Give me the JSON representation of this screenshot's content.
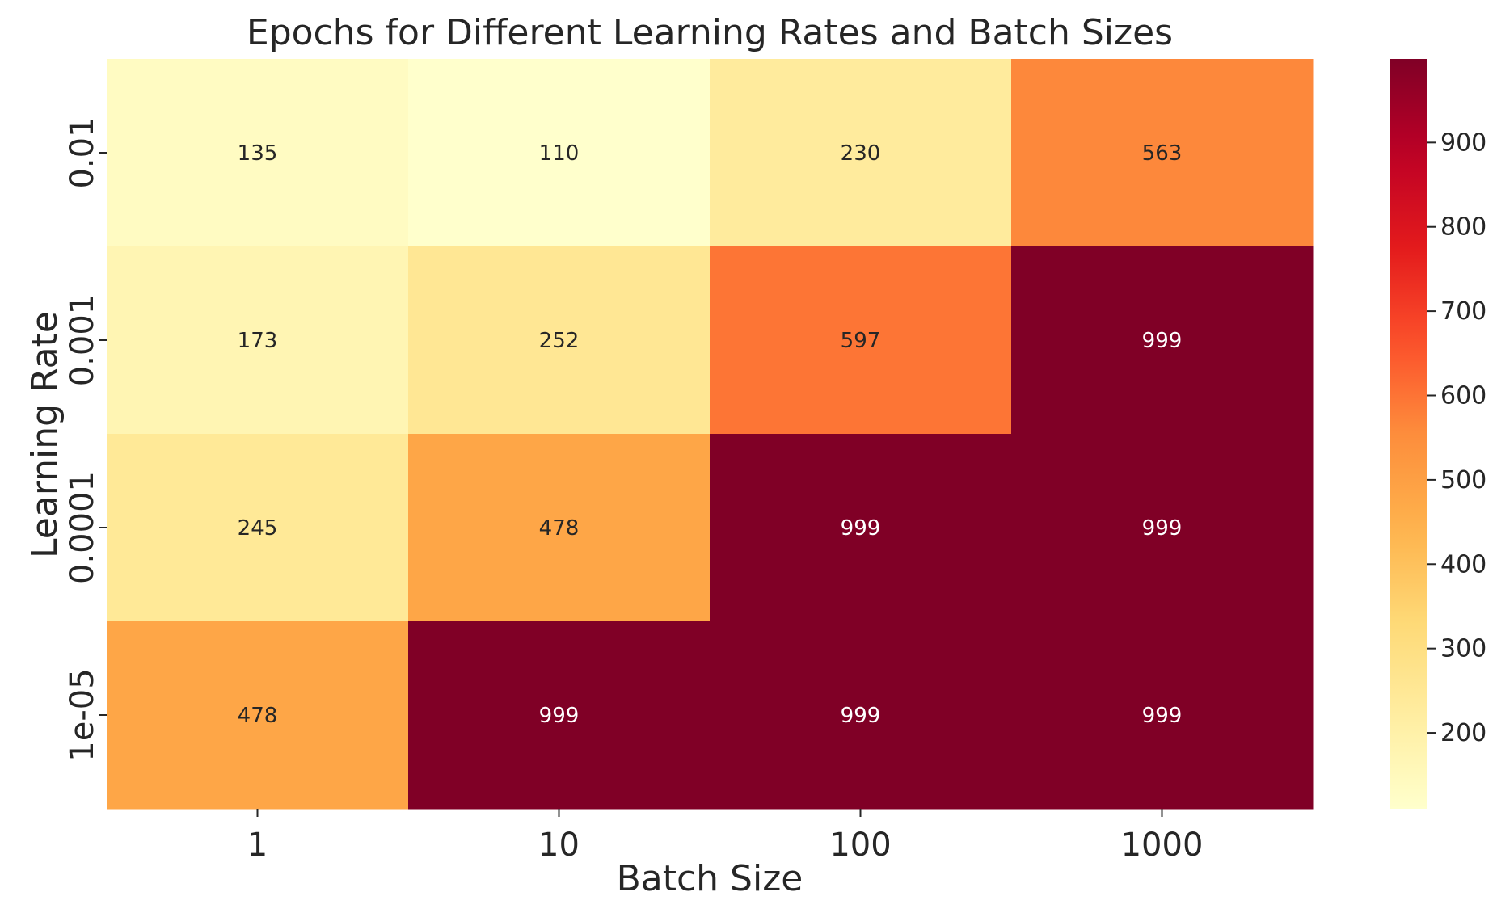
{
  "chart_data": {
    "type": "heatmap",
    "title": "Epochs for Different Learning Rates and Batch Sizes",
    "xlabel": "Batch Size",
    "ylabel": "Learning Rate",
    "x_categories": [
      "1",
      "10",
      "100",
      "1000"
    ],
    "y_categories": [
      "0.01",
      "0.001",
      "0.0001",
      "1e-05"
    ],
    "values": [
      [
        135,
        110,
        230,
        563
      ],
      [
        173,
        252,
        597,
        999
      ],
      [
        245,
        478,
        999,
        999
      ],
      [
        478,
        999,
        999,
        999
      ]
    ],
    "colormap": "YlOrRd",
    "vmin": 110,
    "vmax": 999,
    "colorbar": {
      "ticks": [
        200,
        300,
        400,
        500,
        600,
        700,
        800,
        900
      ],
      "labels": [
        "200",
        "300",
        "400",
        "500",
        "600",
        "700",
        "800",
        "900"
      ]
    },
    "annotations": true
  }
}
